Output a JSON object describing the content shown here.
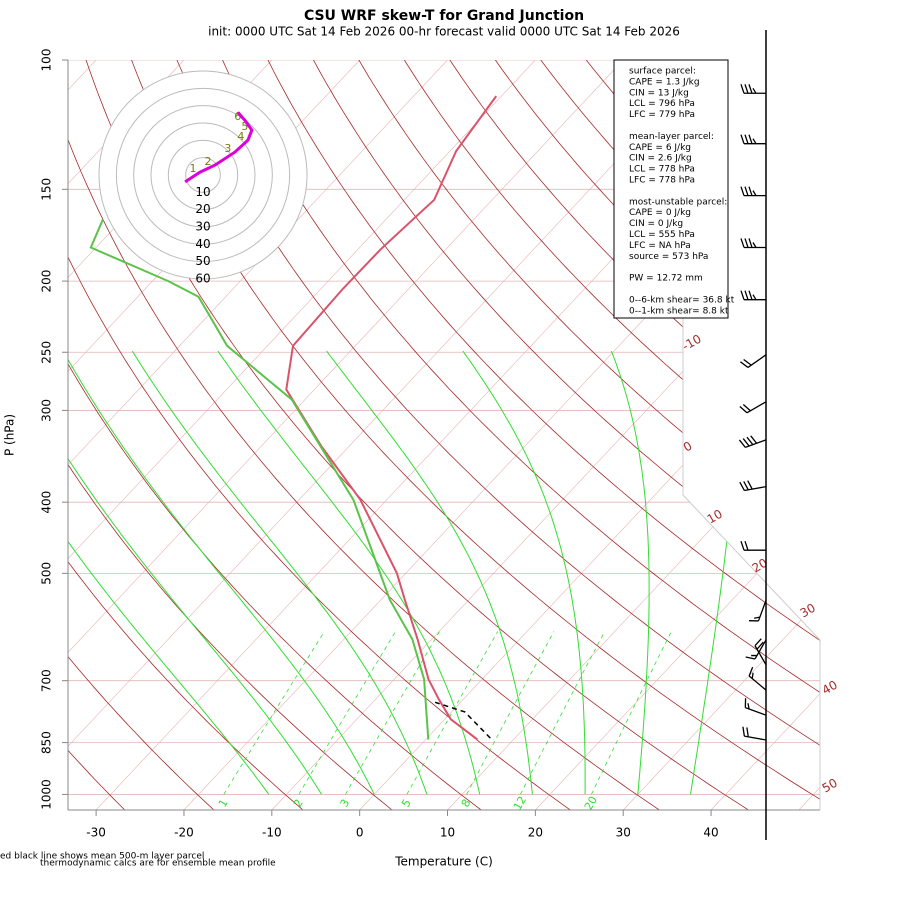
{
  "chart_data": {
    "type": "skewt",
    "title": "CSU WRF skew-T for Grand Junction",
    "subtitle": "init: 0000 UTC Sat 14 Feb 2026    00-hr forecast valid 0000 UTC Sat 14 Feb 2026",
    "x_label": "Temperature (C)",
    "y_label": "P (hPa)",
    "xlim": [
      -33.2,
      52.4
    ],
    "ylim": [
      1050,
      100
    ],
    "log_y": true,
    "xticks": [
      -30,
      -20,
      -10,
      0,
      10,
      20,
      30,
      40
    ],
    "yticks": [
      100,
      150,
      200,
      250,
      300,
      400,
      500,
      700,
      850,
      1000
    ],
    "series": [
      {
        "color": "#d9536a",
        "dash": false,
        "pressure": [
          842,
          790,
          742,
          697,
          615,
          543,
          500,
          397,
          336,
          281,
          245,
          205,
          181,
          155,
          133,
          112
        ],
        "values": [
          5.9,
          0.7,
          -2.8,
          -6.1,
          -11.6,
          -17.3,
          -21.0,
          -33.0,
          -43.1,
          -53.2,
          -57.1,
          -57.5,
          -57.4,
          -56.6,
          -59.3,
          -60.6
        ]
      },
      {
        "color": "#5cc24a",
        "dash": false,
        "pressure": [
          842,
          697,
          615,
          543,
          397,
          290,
          245,
          210,
          200,
          180,
          165
        ],
        "values": [
          0.3,
          -6.6,
          -12.2,
          -19.0,
          -33.8,
          -51.5,
          -64.6,
          -73.1,
          -78.2,
          -90.6,
          -92.2
        ]
      },
      {
        "color": "#000000",
        "dash": true,
        "pressure": [
          838,
          772,
          749
        ],
        "values": [
          7.2,
          1.5,
          -2.9
        ]
      }
    ],
    "mixing_ratio_lines": [
      1,
      2,
      3,
      5,
      8,
      12,
      20
    ],
    "curve_labels": [
      -10,
      0,
      10,
      20,
      30,
      40,
      50
    ],
    "winds": {
      "pressure": [
        111,
        130,
        153,
        180,
        212,
        252,
        292,
        329,
        381,
        465,
        544,
        616,
        666,
        721,
        780,
        843
      ],
      "speed": [
        35,
        35,
        35,
        35,
        35,
        20,
        20,
        40,
        30,
        20,
        15,
        15,
        20,
        15,
        15,
        20
      ],
      "direction": [
        270,
        270,
        270,
        270,
        270,
        235,
        240,
        250,
        260,
        270,
        200,
        210,
        330,
        310,
        290,
        280
      ]
    },
    "hodograph": {
      "rings": [
        10,
        20,
        30,
        40,
        50,
        60
      ],
      "color": "#dd00dd",
      "u": [
        -10.3,
        -1.7,
        6.9,
        18.4,
        25.9,
        28.2,
        24.1,
        20.1
      ],
      "v": [
        -4,
        1.7,
        5.7,
        13.2,
        20.1,
        25.9,
        31.6,
        36.2
      ],
      "labels": [
        null,
        "1",
        "2",
        "3",
        "4",
        "5",
        "6",
        null
      ]
    },
    "parcel_info": [
      [
        "surface parcel:",
        "CAPE = 1.3 J/kg",
        "CIN = 13 J/kg",
        "LCL = 796 hPa",
        "LFC = 779 hPa"
      ],
      [
        "mean-layer parcel:",
        "CAPE = 6 J/kg",
        "CIN = 2.6 J/kg",
        "LCL = 778 hPa",
        "LFC = 778 hPa"
      ],
      [
        "most-unstable parcel:",
        "CAPE = 0 J/kg",
        "CIN = 0 J/kg",
        "LCL = 555 hPa",
        "LFC = NA hPa",
        "source = 573 hPa"
      ],
      [
        "PW =  12.72 mm"
      ],
      [
        "0--6-km shear= 36.8 kt",
        "0--1-km shear= 8.8 kt"
      ]
    ],
    "notes": [
      "ed black line shows mean 500-m layer parcel",
      "thermodynamic calcs are for ensemble mean profile"
    ]
  }
}
